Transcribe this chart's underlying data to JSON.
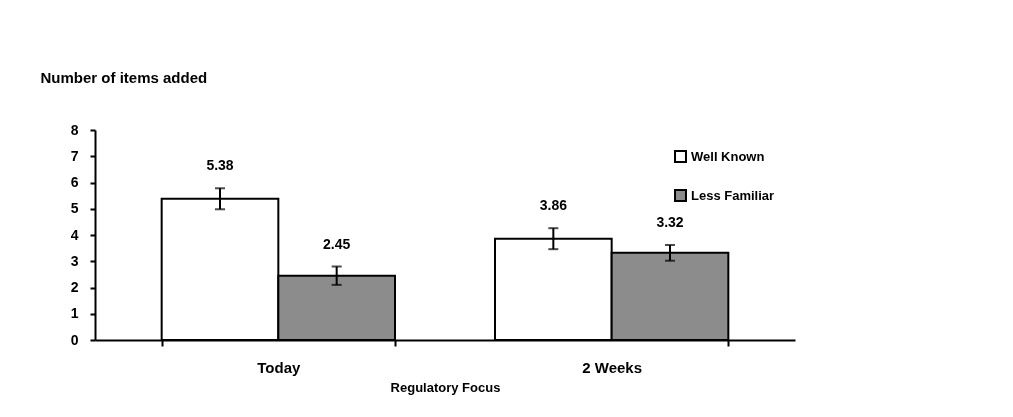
{
  "chart_data": {
    "type": "bar",
    "xlabel": "Regulatory Focus",
    "ylabel": "Number of items added",
    "categories": [
      "Today",
      "2 Weeks"
    ],
    "series": [
      {
        "name": "Well Known",
        "color": "#ffffff",
        "values": [
          5.38,
          3.86
        ],
        "errors": [
          0.4,
          0.4
        ]
      },
      {
        "name": "Less Familiar",
        "color": "#8c8c8c",
        "values": [
          2.45,
          3.32
        ],
        "errors": [
          0.35,
          0.3
        ]
      }
    ],
    "ylim": [
      0,
      8
    ],
    "yticks": [
      0,
      1,
      2,
      3,
      4,
      5,
      6,
      7,
      8
    ],
    "grid": false,
    "legend": "top right",
    "data_labels": true
  }
}
